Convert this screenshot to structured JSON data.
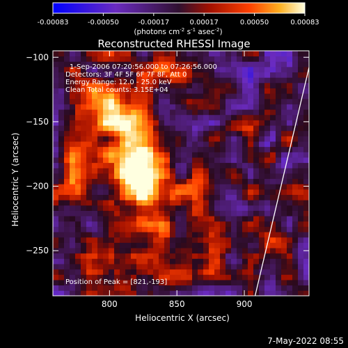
{
  "chart_data": {
    "type": "heatmap",
    "title": "Reconstructed RHESSI Image",
    "xlabel": "Heliocentric X (arcsec)",
    "ylabel": "Heliocentric Y (arcsec)",
    "xlim": [
      758,
      948
    ],
    "ylim": [
      -285,
      -95
    ],
    "x_ticks": [
      800,
      850,
      900
    ],
    "y_ticks": [
      -100,
      -150,
      -200,
      -250
    ],
    "colorbar": {
      "ticks": [
        "-0.00083",
        "-0.00050",
        "-0.00017",
        "0.00017",
        "0.00050",
        "0.00083"
      ],
      "range": [
        -0.00083,
        0.00083
      ],
      "units_label": "(photons cm",
      "units_sup1": "-2",
      "units_mid": " s",
      "units_sup2": "-1",
      "units_end": " asec",
      "units_sup3": "-2",
      "units_close": ")"
    },
    "annotations": [
      "1-Sep-2006 07:20:56.000 to 07:26:56.000",
      "Detectors: 3F 4F 5F 6F 7F 8F, Att 0",
      "Energy Range: 12.0 - 25.0 keV",
      "Clean    Total counts: 3.15E+04"
    ],
    "peak_label": "Position of Peak = [821,-193]",
    "peak": [
      821,
      -193
    ],
    "limb_line": [
      [
        908,
        -285
      ],
      [
        948,
        -108
      ]
    ],
    "sources": [
      {
        "x": 821,
        "y": -193,
        "amp": 1.0,
        "sx": 14,
        "sy": 26
      },
      {
        "x": 812,
        "y": -150,
        "amp": 0.62,
        "sx": 18,
        "sy": 16
      },
      {
        "x": 790,
        "y": -125,
        "amp": 0.45,
        "sx": 14,
        "sy": 14
      },
      {
        "x": 775,
        "y": -180,
        "amp": 0.45,
        "sx": 10,
        "sy": 26
      },
      {
        "x": 855,
        "y": -118,
        "amp": 0.35,
        "sx": 14,
        "sy": 10
      },
      {
        "x": 845,
        "y": -215,
        "amp": 0.32,
        "sx": 14,
        "sy": 18
      },
      {
        "x": 815,
        "y": -245,
        "amp": 0.3,
        "sx": 14,
        "sy": 12
      },
      {
        "x": 890,
        "y": -160,
        "amp": 0.26,
        "sx": 12,
        "sy": 10
      },
      {
        "x": 775,
        "y": -265,
        "amp": 0.22,
        "sx": 12,
        "sy": 10
      },
      {
        "x": 880,
        "y": -245,
        "amp": 0.24,
        "sx": 14,
        "sy": 12
      },
      {
        "x": 915,
        "y": -210,
        "amp": 0.2,
        "sx": 10,
        "sy": 12
      }
    ]
  },
  "footer": {
    "timestamp": "7-May-2022 08:55"
  }
}
